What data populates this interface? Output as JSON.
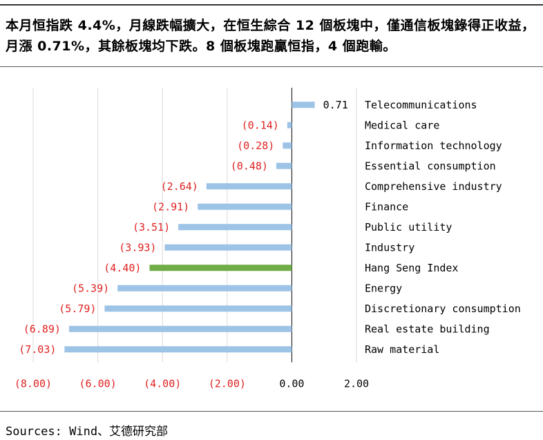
{
  "headline": "本月恒指跌 4.4%，月線跌幅擴大，在恒生綜合 12 個板塊中，僅通信板塊錄得正收益，月漲 0.71%，其餘板塊均下跌。8 個板塊跑贏恒指，4 個跑輸。",
  "source": "Sources: Wind、艾德研究部",
  "colors": {
    "bar": "#9dc3e6",
    "highlight_bar": "#70ad47",
    "negative_text": "#e02020",
    "positive_text": "#000000",
    "grid": "#d9d9d9",
    "axis": "#000000"
  },
  "chart_data": {
    "type": "bar",
    "orientation": "horizontal",
    "title": "",
    "xlabel": "",
    "ylabel": "",
    "xlim": [
      -8,
      2
    ],
    "x_ticks": [
      -8,
      -6,
      -4,
      -2,
      0,
      2
    ],
    "x_tick_labels": [
      "(8.00)",
      "(6.00)",
      "(4.00)",
      "(2.00)",
      "0.00",
      "2.00"
    ],
    "grid": true,
    "legend": "none",
    "highlight_category": "Hang Seng Index",
    "categories": [
      "Telecommunications",
      "Medical care",
      "Information technology",
      "Essential consumption",
      "Comprehensive industry",
      "Finance",
      "Public utility",
      "Industry",
      "Hang Seng Index",
      "Energy",
      "Discretionary consumption",
      "Real estate building",
      "Raw material"
    ],
    "values": [
      0.71,
      -0.14,
      -0.28,
      -0.48,
      -2.64,
      -2.91,
      -3.51,
      -3.93,
      -4.4,
      -5.39,
      -5.79,
      -6.89,
      -7.03
    ],
    "value_labels": [
      "0.71",
      "(0.14)",
      "(0.28)",
      "(0.48)",
      "(2.64)",
      "(2.91)",
      "(3.51)",
      "(3.93)",
      "(4.40)",
      "(5.39)",
      "(5.79)",
      "(6.89)",
      "(7.03)"
    ]
  }
}
